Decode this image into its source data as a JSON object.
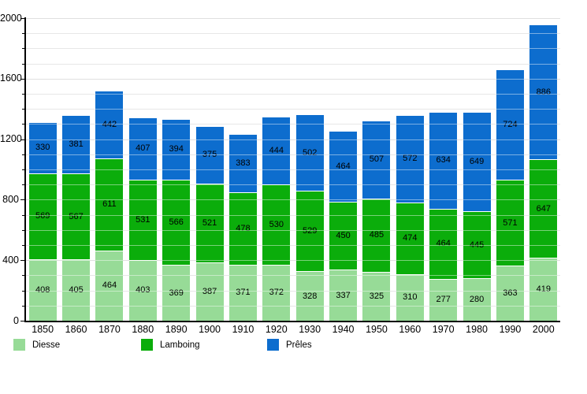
{
  "chart_data": {
    "type": "bar",
    "stacked": true,
    "title": "",
    "xlabel": "",
    "ylabel": "",
    "categories": [
      "1850",
      "1860",
      "1870",
      "1880",
      "1890",
      "1900",
      "1910",
      "1920",
      "1930",
      "1940",
      "1950",
      "1960",
      "1970",
      "1980",
      "1990",
      "2000"
    ],
    "series": [
      {
        "name": "Diesse",
        "color": "#97DB97",
        "values": [
          408,
          405,
          464,
          403,
          369,
          387,
          371,
          372,
          328,
          337,
          325,
          310,
          277,
          280,
          363,
          419
        ]
      },
      {
        "name": "Lamboing",
        "color": "#0BAD0B",
        "values": [
          569,
          567,
          611,
          531,
          566,
          521,
          478,
          530,
          529,
          450,
          485,
          474,
          464,
          445,
          571,
          647
        ]
      },
      {
        "name": "Prêles",
        "color": "#0D6DCE",
        "values": [
          330,
          381,
          442,
          407,
          394,
          375,
          383,
          444,
          502,
          464,
          507,
          572,
          634,
          649,
          724,
          886
        ]
      }
    ],
    "ylim": [
      0,
      2000
    ],
    "yticks_labeled": [
      0,
      400,
      800,
      1200,
      1600,
      2000
    ],
    "ytick_minor_step": 100,
    "grid": "horizontal every 100, light gray behind bars, white stripes over bars",
    "legend_position": "bottom-left",
    "value_labels": "centered inside each segment"
  },
  "colors": {
    "background": "#ffffff",
    "axis": "#000000",
    "grid_minor": "#d4d4d4",
    "grid_major": "#c6c6c6",
    "value_label_text": "#000000",
    "segment_separator": "#ffffff"
  },
  "legend": {
    "items": [
      {
        "label": "Diesse",
        "color": "#97DB97"
      },
      {
        "label": "Lamboing",
        "color": "#0BAD0B"
      },
      {
        "label": "Prêles",
        "color": "#0D6DCE"
      }
    ]
  }
}
